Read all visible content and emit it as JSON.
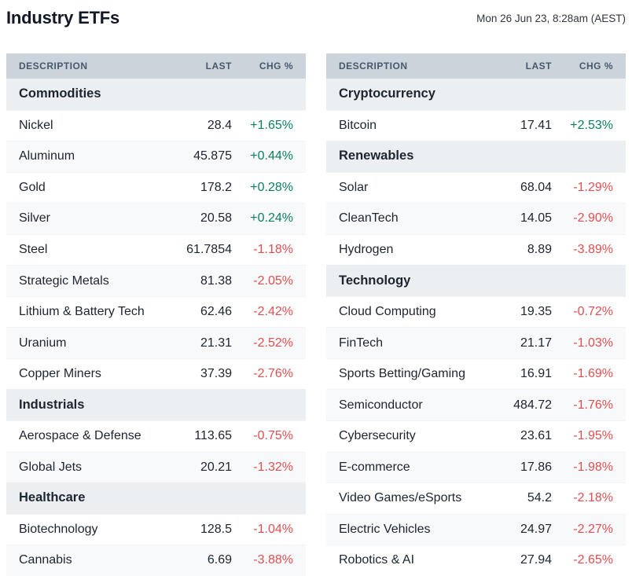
{
  "header": {
    "title": "Industry ETFs",
    "timestamp": "Mon 26 Jun 23, 8:28am (AEST)"
  },
  "columns": {
    "description": "DESCRIPTION",
    "last": "LAST",
    "chg": "CHG %"
  },
  "colors": {
    "positive": "#0c7f63",
    "negative": "#e04f4f",
    "header_bg": "#cbd4db",
    "category_bg": "#eceff1"
  },
  "tables": [
    {
      "sections": [
        {
          "name": "Commodities",
          "rows": [
            {
              "label": "Nickel",
              "last": "28.4",
              "chg": "+1.65%"
            },
            {
              "label": "Aluminum",
              "last": "45.875",
              "chg": "+0.44%"
            },
            {
              "label": "Gold",
              "last": "178.2",
              "chg": "+0.28%"
            },
            {
              "label": "Silver",
              "last": "20.58",
              "chg": "+0.24%"
            },
            {
              "label": "Steel",
              "last": "61.7854",
              "chg": "-1.18%"
            },
            {
              "label": "Strategic Metals",
              "last": "81.38",
              "chg": "-2.05%"
            },
            {
              "label": "Lithium & Battery Tech",
              "last": "62.46",
              "chg": "-2.42%"
            },
            {
              "label": "Uranium",
              "last": "21.31",
              "chg": "-2.52%"
            },
            {
              "label": "Copper Miners",
              "last": "37.39",
              "chg": "-2.76%"
            }
          ]
        },
        {
          "name": "Industrials",
          "rows": [
            {
              "label": "Aerospace & Defense",
              "last": "113.65",
              "chg": "-0.75%"
            },
            {
              "label": "Global Jets",
              "last": "20.21",
              "chg": "-1.32%"
            }
          ]
        },
        {
          "name": "Healthcare",
          "rows": [
            {
              "label": "Biotechnology",
              "last": "128.5",
              "chg": "-1.04%"
            },
            {
              "label": "Cannabis",
              "last": "6.69",
              "chg": "-3.88%"
            }
          ]
        }
      ]
    },
    {
      "sections": [
        {
          "name": "Cryptocurrency",
          "rows": [
            {
              "label": "Bitcoin",
              "last": "17.41",
              "chg": "+2.53%"
            }
          ]
        },
        {
          "name": "Renewables",
          "rows": [
            {
              "label": "Solar",
              "last": "68.04",
              "chg": "-1.29%"
            },
            {
              "label": "CleanTech",
              "last": "14.05",
              "chg": "-2.90%"
            },
            {
              "label": "Hydrogen",
              "last": "8.89",
              "chg": "-3.89%"
            }
          ]
        },
        {
          "name": "Technology",
          "rows": [
            {
              "label": "Cloud Computing",
              "last": "19.35",
              "chg": "-0.72%"
            },
            {
              "label": "FinTech",
              "last": "21.17",
              "chg": "-1.03%"
            },
            {
              "label": "Sports Betting/Gaming",
              "last": "16.91",
              "chg": "-1.69%"
            },
            {
              "label": "Semiconductor",
              "last": "484.72",
              "chg": "-1.76%"
            },
            {
              "label": "Cybersecurity",
              "last": "23.61",
              "chg": "-1.95%"
            },
            {
              "label": "E-commerce",
              "last": "17.86",
              "chg": "-1.98%"
            },
            {
              "label": "Video Games/eSports",
              "last": "54.2",
              "chg": "-2.18%"
            },
            {
              "label": "Electric Vehicles",
              "last": "24.97",
              "chg": "-2.27%"
            },
            {
              "label": "Robotics & AI",
              "last": "27.94",
              "chg": "-2.65%"
            }
          ]
        }
      ]
    }
  ]
}
